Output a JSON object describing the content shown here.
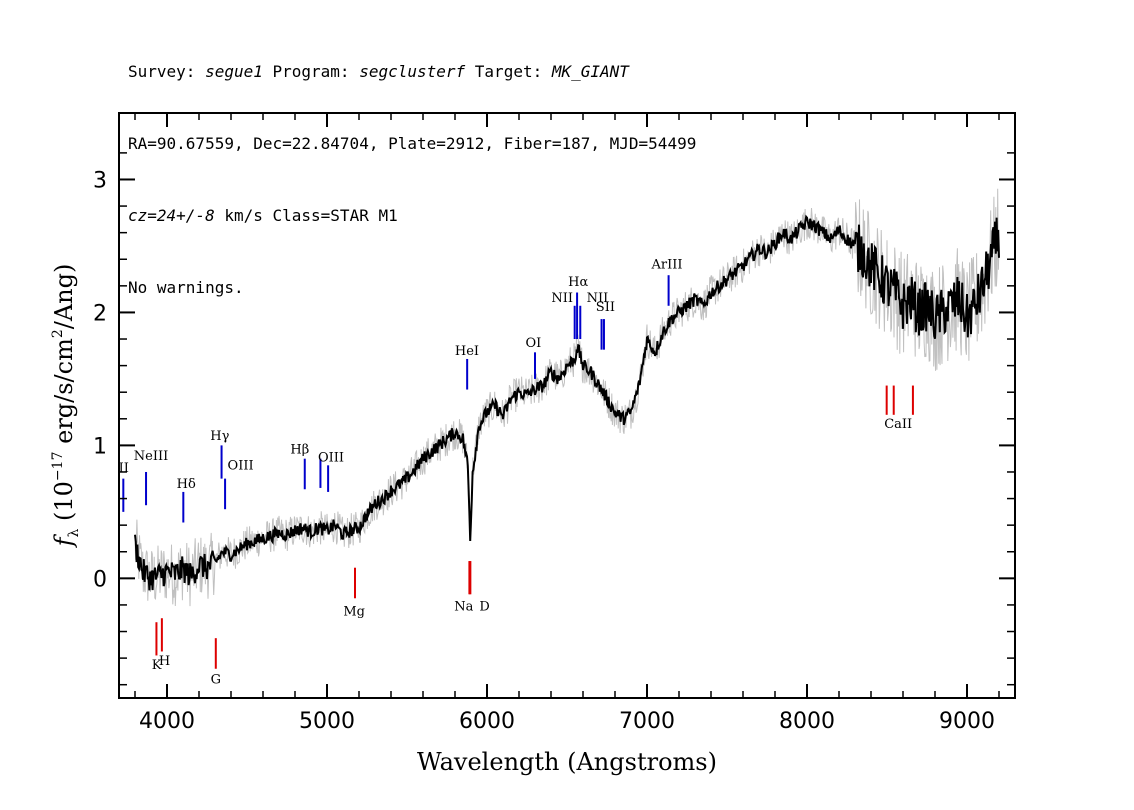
{
  "header": {
    "line1": {
      "survey_label": "Survey: ",
      "survey": "segue1",
      "program_label": " Program: ",
      "program": "segclusterf",
      "target_label": " Target: ",
      "target": "MK_GIANT"
    },
    "line2": "RA=90.67559, Dec=22.84704, Plate=2912, Fiber=187, MJD=54499",
    "line3": {
      "cz": "cz=24+/-8",
      "rest": " km/s Class=STAR M1"
    },
    "line4": "No warnings."
  },
  "chart_data": {
    "type": "line",
    "xlabel": "Wavelength (Angstroms)",
    "ylabel": "f_λ (10^-17 erg/s/cm^2/Ang)",
    "xlim": [
      3700,
      9300
    ],
    "ylim": [
      -0.9,
      3.5
    ],
    "x_ticks": [
      4000,
      5000,
      6000,
      7000,
      8000,
      9000
    ],
    "y_ticks": [
      0,
      1,
      2,
      3
    ],
    "colors": {
      "spectrum": "#000000",
      "noise": "#c0c0c0",
      "emission": "#0000cc",
      "absorption": "#dd0000"
    },
    "series": [
      {
        "type": "spectrum",
        "x": [
          3800,
          3850,
          3900,
          3950,
          4000,
          4050,
          4100,
          4150,
          4200,
          4250,
          4300,
          4350,
          4400,
          4450,
          4500,
          4550,
          4600,
          4650,
          4700,
          4750,
          4800,
          4850,
          4900,
          4950,
          5000,
          5050,
          5100,
          5150,
          5200,
          5250,
          5300,
          5350,
          5400,
          5450,
          5500,
          5550,
          5600,
          5650,
          5700,
          5750,
          5800,
          5850,
          5880,
          5895,
          5910,
          5950,
          6000,
          6050,
          6100,
          6150,
          6200,
          6250,
          6300,
          6350,
          6400,
          6450,
          6500,
          6550,
          6563,
          6600,
          6650,
          6700,
          6750,
          6800,
          6850,
          6900,
          6950,
          7000,
          7050,
          7100,
          7150,
          7200,
          7250,
          7300,
          7350,
          7400,
          7450,
          7500,
          7550,
          7600,
          7650,
          7700,
          7750,
          7800,
          7850,
          7900,
          7950,
          8000,
          8050,
          8100,
          8150,
          8200,
          8250,
          8300,
          8350,
          8400,
          8450,
          8500,
          8550,
          8600,
          8650,
          8700,
          8750,
          8800,
          8850,
          8900,
          8950,
          9000,
          9050,
          9100,
          9150,
          9200
        ],
        "y": [
          0.25,
          0.05,
          0.0,
          0.02,
          0.05,
          0.03,
          0.07,
          0.02,
          0.1,
          0.08,
          0.12,
          0.2,
          0.18,
          0.22,
          0.26,
          0.28,
          0.3,
          0.32,
          0.34,
          0.33,
          0.36,
          0.38,
          0.35,
          0.38,
          0.36,
          0.4,
          0.33,
          0.36,
          0.38,
          0.48,
          0.56,
          0.6,
          0.66,
          0.7,
          0.75,
          0.82,
          0.9,
          0.95,
          1.0,
          1.05,
          1.1,
          1.05,
          0.85,
          0.3,
          0.8,
          1.15,
          1.25,
          1.3,
          1.22,
          1.35,
          1.4,
          1.38,
          1.42,
          1.45,
          1.55,
          1.5,
          1.6,
          1.65,
          1.75,
          1.6,
          1.55,
          1.45,
          1.35,
          1.25,
          1.2,
          1.25,
          1.45,
          1.8,
          1.7,
          1.85,
          1.95,
          2.0,
          2.05,
          2.1,
          2.05,
          2.15,
          2.2,
          2.25,
          2.3,
          2.35,
          2.42,
          2.48,
          2.45,
          2.52,
          2.6,
          2.55,
          2.62,
          2.68,
          2.65,
          2.6,
          2.55,
          2.62,
          2.55,
          2.5,
          2.45,
          2.35,
          2.28,
          2.2,
          2.15,
          2.05,
          2.1,
          2.0,
          2.05,
          1.95,
          2.0,
          2.05,
          2.1,
          1.95,
          2.05,
          2.2,
          2.4,
          2.6
        ]
      }
    ],
    "line_markers": {
      "emission": [
        {
          "label": "OII",
          "x": 3727,
          "ylo": 0.5,
          "yhi": 0.75
        },
        {
          "label": "NeIII",
          "x": 3869,
          "ylo": 0.55,
          "yhi": 0.8
        },
        {
          "label": "Hδ",
          "x": 4102,
          "ylo": 0.42,
          "yhi": 0.65
        },
        {
          "label": "Hγ",
          "x": 4341,
          "ylo": 0.75,
          "yhi": 1.0
        },
        {
          "label": "OIII",
          "x": 4363,
          "ylo": 0.52,
          "yhi": 0.75
        },
        {
          "label": "Hβ",
          "x": 4861,
          "ylo": 0.67,
          "yhi": 0.9
        },
        {
          "label": "OIII",
          "x": 4959,
          "ylo": 0.68,
          "yhi": 0.9
        },
        {
          "label": "OIII",
          "x": 5007,
          "ylo": 0.65,
          "yhi": 0.85
        },
        {
          "label": "HeI",
          "x": 5876,
          "ylo": 1.42,
          "yhi": 1.65
        },
        {
          "label": "OI",
          "x": 6300,
          "ylo": 1.5,
          "yhi": 1.7
        },
        {
          "label": "NII",
          "x": 6548,
          "ylo": 1.8,
          "yhi": 2.05
        },
        {
          "label": "Hα",
          "x": 6563,
          "ylo": 1.8,
          "yhi": 2.15
        },
        {
          "label": "NII",
          "x": 6583,
          "ylo": 1.8,
          "yhi": 2.05
        },
        {
          "label": "SII",
          "x": 6716,
          "ylo": 1.72,
          "yhi": 1.95
        },
        {
          "label": "SII",
          "x": 6731,
          "ylo": 1.72,
          "yhi": 1.95
        },
        {
          "label": "ArIII",
          "x": 7135,
          "ylo": 2.05,
          "yhi": 2.28
        }
      ],
      "absorption": [
        {
          "label": "K",
          "x": 3934,
          "ylo": -0.58,
          "yhi": -0.33
        },
        {
          "label": "H",
          "x": 3968,
          "ylo": -0.55,
          "yhi": -0.3
        },
        {
          "label": "G",
          "x": 4305,
          "ylo": -0.68,
          "yhi": -0.45
        },
        {
          "label": "Mg",
          "x": 5175,
          "ylo": -0.15,
          "yhi": 0.08
        },
        {
          "label": "Na",
          "x": 5890,
          "ylo": -0.12,
          "yhi": 0.13
        },
        {
          "label": "D",
          "x": 5896,
          "ylo": -0.12,
          "yhi": 0.13
        },
        {
          "label": "CaII",
          "x": 8498,
          "ylo": 1.23,
          "yhi": 1.45
        },
        {
          "label": "CaII",
          "x": 8542,
          "ylo": 1.23,
          "yhi": 1.45
        },
        {
          "label": "CaII",
          "x": 8662,
          "ylo": 1.23,
          "yhi": 1.45
        }
      ]
    },
    "labels": {
      "emission": [
        {
          "text": "II",
          "x": 3730,
          "y": 0.8
        },
        {
          "text": "NeIII",
          "x": 3900,
          "y": 0.89
        },
        {
          "text": "Hδ",
          "x": 4120,
          "y": 0.68
        },
        {
          "text": "Hγ",
          "x": 4330,
          "y": 1.04
        },
        {
          "text": "OIII",
          "x": 4460,
          "y": 0.82
        },
        {
          "text": "Hβ",
          "x": 4830,
          "y": 0.94
        },
        {
          "text": "OIII",
          "x": 5025,
          "y": 0.88
        },
        {
          "text": "HeI",
          "x": 5875,
          "y": 1.68
        },
        {
          "text": "OI",
          "x": 6290,
          "y": 1.74
        },
        {
          "text": "NII",
          "x": 6470,
          "y": 2.08
        },
        {
          "text": "Hα",
          "x": 6570,
          "y": 2.2
        },
        {
          "text": "NII",
          "x": 6690,
          "y": 2.08
        },
        {
          "text": "SII",
          "x": 6740,
          "y": 2.01
        },
        {
          "text": "ArIII",
          "x": 7125,
          "y": 2.33
        }
      ],
      "absorption": [
        {
          "text": "K",
          "x": 3935,
          "y": -0.68
        },
        {
          "text": "H",
          "x": 3985,
          "y": -0.65
        },
        {
          "text": "G",
          "x": 4305,
          "y": -0.79
        },
        {
          "text": "Mg",
          "x": 5170,
          "y": -0.28
        },
        {
          "text": "Na",
          "x": 5855,
          "y": -0.24
        },
        {
          "text": "D",
          "x": 5985,
          "y": -0.24
        },
        {
          "text": "CaII",
          "x": 8570,
          "y": 1.13
        }
      ]
    }
  }
}
